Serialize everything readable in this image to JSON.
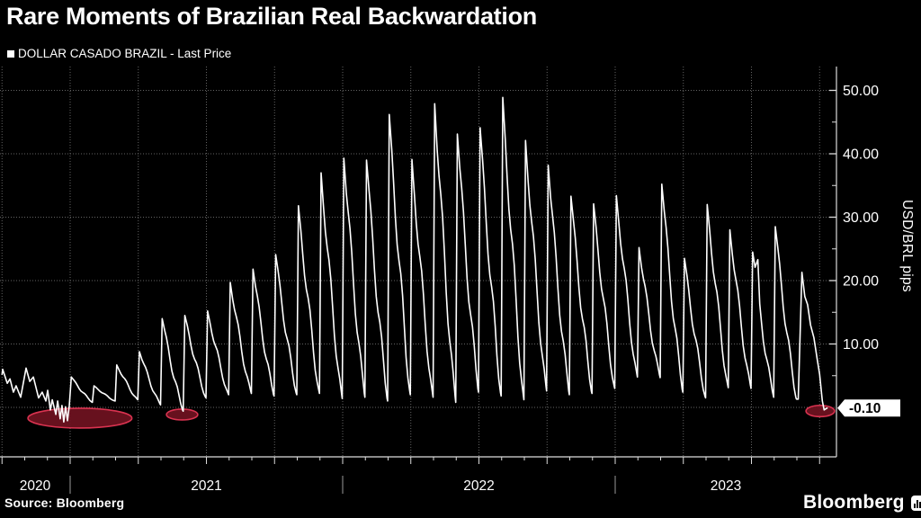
{
  "page": {
    "title": "Rare Moments of Brazilian Real Backwardation",
    "source": "Source: Bloomberg",
    "brand": "Bloomberg"
  },
  "legend": {
    "marker": "■",
    "label": "DOLLAR CASADO BRAZIL - Last Price"
  },
  "chart_data": {
    "type": "line",
    "title": "Rare Moments of Brazilian Real Backwardation",
    "series_name": "DOLLAR CASADO BRAZIL - Last Price",
    "unit_label": "USD/BRL pips",
    "grid": "dotted",
    "legend_position": "top-left",
    "x_axis": {
      "time_origin": "Oct 2020",
      "years": [
        {
          "label": "2020",
          "t0": -0.09,
          "t1": 3
        },
        {
          "label": "2021",
          "t0": 3,
          "t1": 15
        },
        {
          "label": "2022",
          "t0": 15,
          "t1": 27
        },
        {
          "label": "2023",
          "t0": 27,
          "t1": 36.74
        }
      ],
      "minor_tick_every_months": 1,
      "major_tick_every_months": 3
    },
    "y_axis": {
      "range": [
        -7.8,
        53.8
      ],
      "major_ticks": [
        {
          "v": 50,
          "label": "50.00"
        },
        {
          "v": 40,
          "label": "40.00"
        },
        {
          "v": 30,
          "label": "30.00"
        },
        {
          "v": 20,
          "label": "20.00"
        },
        {
          "v": 10,
          "label": "10.00"
        }
      ],
      "minor_ticks": [
        45,
        35,
        25,
        15,
        5
      ],
      "zero_gridline": 0,
      "last_price": -0.1,
      "last_price_label": "-0.10"
    },
    "series": {
      "pre_2021_points": [
        [
          0.0,
          5.2
        ],
        [
          0.03,
          6.0
        ],
        [
          0.23,
          3.8
        ],
        [
          0.35,
          4.5
        ],
        [
          0.5,
          2.4
        ],
        [
          0.62,
          3.4
        ],
        [
          0.82,
          1.6
        ],
        [
          1.06,
          6.2
        ],
        [
          1.22,
          4.1
        ],
        [
          1.38,
          4.8
        ],
        [
          1.61,
          1.5
        ],
        [
          1.77,
          2.4
        ],
        [
          1.93,
          1.0
        ],
        [
          2.01,
          2.7
        ],
        [
          2.13,
          -0.4
        ],
        [
          2.21,
          1.2
        ],
        [
          2.37,
          -1.1
        ],
        [
          2.45,
          1.0
        ],
        [
          2.56,
          -1.8
        ],
        [
          2.64,
          0.3
        ],
        [
          2.72,
          -2.3
        ],
        [
          2.8,
          0.1
        ],
        [
          2.88,
          -2.1
        ],
        [
          2.96,
          0.2
        ]
      ],
      "monthly_teeth": [
        {
          "month": "Jan 2021",
          "peak": 4.8,
          "trough": 0.8
        },
        {
          "month": "Feb 2021",
          "peak": 3.4,
          "trough": 1.0
        },
        {
          "month": "Mar 2021",
          "peak": 6.7,
          "trough": 1.2
        },
        {
          "month": "Apr 2021",
          "peak": 8.8,
          "trough": 0.4
        },
        {
          "month": "May 2021",
          "peak": 14.0,
          "trough": -0.6
        },
        {
          "month": "Jun 2021",
          "peak": 14.5,
          "trough": 1.5
        },
        {
          "month": "Jul 2021",
          "peak": 15.2,
          "trough": 2.0
        },
        {
          "month": "Aug 2021",
          "peak": 19.7,
          "trough": 2.2
        },
        {
          "month": "Sep 2021",
          "peak": 21.8,
          "trough": 1.8
        },
        {
          "month": "Oct 2021",
          "peak": 24.1,
          "trough": 2.0
        },
        {
          "month": "Nov 2021",
          "peak": 31.8,
          "trough": 2.2
        },
        {
          "month": "Dec 2021",
          "peak": 37.0,
          "trough": 1.4
        },
        {
          "month": "Jan 2022",
          "peak": 39.3,
          "trough": 1.6
        },
        {
          "month": "Feb 2022",
          "peak": 39.0,
          "trough": 1.0
        },
        {
          "month": "Mar 2022",
          "peak": 46.2,
          "trough": 2.0
        },
        {
          "month": "Apr 2022",
          "peak": 39.1,
          "trough": 1.6
        },
        {
          "month": "May 2022",
          "peak": 47.9,
          "trough": 0.8
        },
        {
          "month": "Jun 2022",
          "peak": 43.1,
          "trough": 2.4
        },
        {
          "month": "Jul 2022",
          "peak": 44.1,
          "trough": 1.8
        },
        {
          "month": "Aug 2022",
          "peak": 48.9,
          "trough": 1.2
        },
        {
          "month": "Sep 2022",
          "peak": 42.1,
          "trough": 2.6
        },
        {
          "month": "Oct 2022",
          "peak": 38.2,
          "trough": 2.0
        },
        {
          "month": "Nov 2022",
          "peak": 33.3,
          "trough": 2.2
        },
        {
          "month": "Dec 2022",
          "peak": 32.1,
          "trough": 3.0
        },
        {
          "month": "Jan 2023",
          "peak": 33.4,
          "trough": 4.8
        },
        {
          "month": "Feb 2023",
          "peak": 25.2,
          "trough": 4.7
        },
        {
          "month": "Mar 2023",
          "peak": 35.2,
          "trough": 2.4
        },
        {
          "month": "Apr 2023",
          "peak": 23.5,
          "trough": 1.5
        },
        {
          "month": "May 2023",
          "peak": 32.0,
          "trough": 3.1
        },
        {
          "month": "Jun 2023",
          "peak": 28.0,
          "trough": 3.0
        },
        {
          "month": "Jul 2023",
          "peak": 24.5,
          "trough": 1.6,
          "double_top": true
        },
        {
          "month": "Aug 2023",
          "peak": 28.5,
          "trough": 1.3
        }
      ],
      "final_plunge_points": [
        [
          35.06,
          1.3
        ],
        [
          35.22,
          21.3
        ],
        [
          35.35,
          17.5
        ],
        [
          35.47,
          16.2
        ],
        [
          35.6,
          13.0
        ],
        [
          35.75,
          11.0
        ],
        [
          35.9,
          7.5
        ],
        [
          36.0,
          5.2
        ],
        [
          36.12,
          1.0
        ],
        [
          36.2,
          -0.4
        ],
        [
          36.33,
          -0.1
        ]
      ]
    },
    "annotations": {
      "highlight_ellipses": [
        {
          "cx_t": 3.43,
          "cy_v": -1.7,
          "rx_t": 2.29,
          "ry_v": 1.56
        },
        {
          "cx_t": 7.93,
          "cy_v": -1.13,
          "rx_t": 0.69,
          "ry_v": 0.85
        },
        {
          "cx_t": 36.03,
          "cy_v": -0.57,
          "rx_t": 0.63,
          "ry_v": 0.89
        }
      ],
      "highlight_color_fill": "#6f1220",
      "highlight_color_stroke": "#d93350"
    },
    "colors": {
      "background": "#000000",
      "line": "#ffffff",
      "gridline": "#636363",
      "axis": "#dcdcdc",
      "text": "#ffffff",
      "flag_bg": "#ffffff",
      "flag_text": "#000000"
    }
  }
}
